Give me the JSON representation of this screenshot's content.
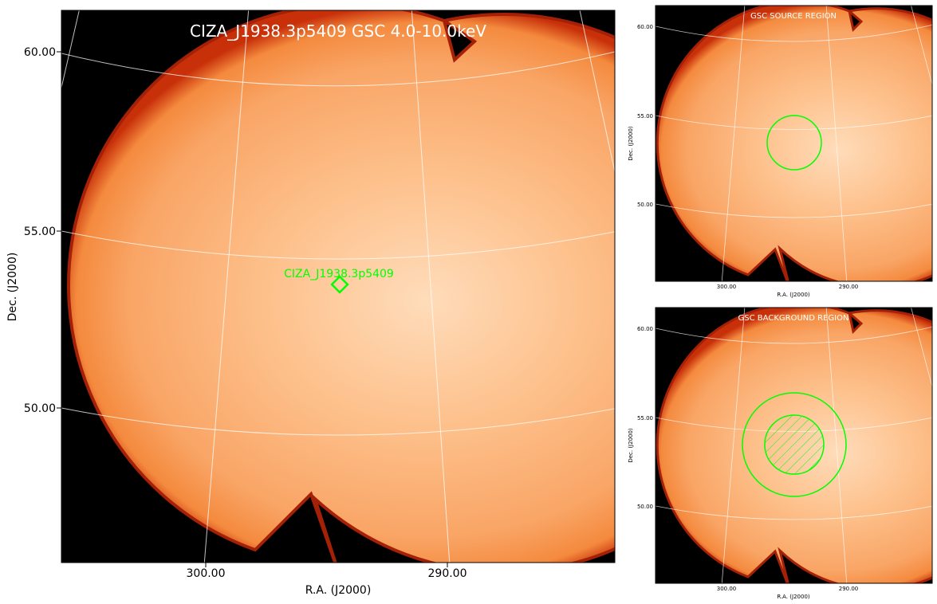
{
  "main_panel": {
    "title": "CIZA_J1938.3p5409 GSC 4.0-10.0keV",
    "source_label": "CIZA_J1938.3p5409",
    "xlabel": "R.A. (J2000)",
    "ylabel": "Dec. (J2000)",
    "x_ticks": [
      "300.00",
      "290.00"
    ],
    "y_ticks": [
      "60.00",
      "55.00",
      "50.00"
    ]
  },
  "source_panel": {
    "title": "GSC SOURCE REGION",
    "xlabel": "R.A. (J2000)",
    "ylabel": "Dec. (J2000)",
    "x_ticks": [
      "300.00",
      "290.00"
    ],
    "y_ticks": [
      "60.00",
      "55.00",
      "50.00"
    ]
  },
  "background_panel": {
    "title": "GSC BACKGROUND REGION",
    "xlabel": "R.A. (J2000)",
    "ylabel": "Dec. (J2000)",
    "x_ticks": [
      "300.00",
      "290.00"
    ],
    "y_ticks": [
      "60.00",
      "55.00",
      "50.00"
    ]
  },
  "colors": {
    "background": "#000000",
    "image_center": "#ffd7b0",
    "image_mid": "#fcae70",
    "image_edge": "#f28a3c",
    "rim": "#d02a0a",
    "region": "#00ff00",
    "grid": "#ffffff"
  }
}
